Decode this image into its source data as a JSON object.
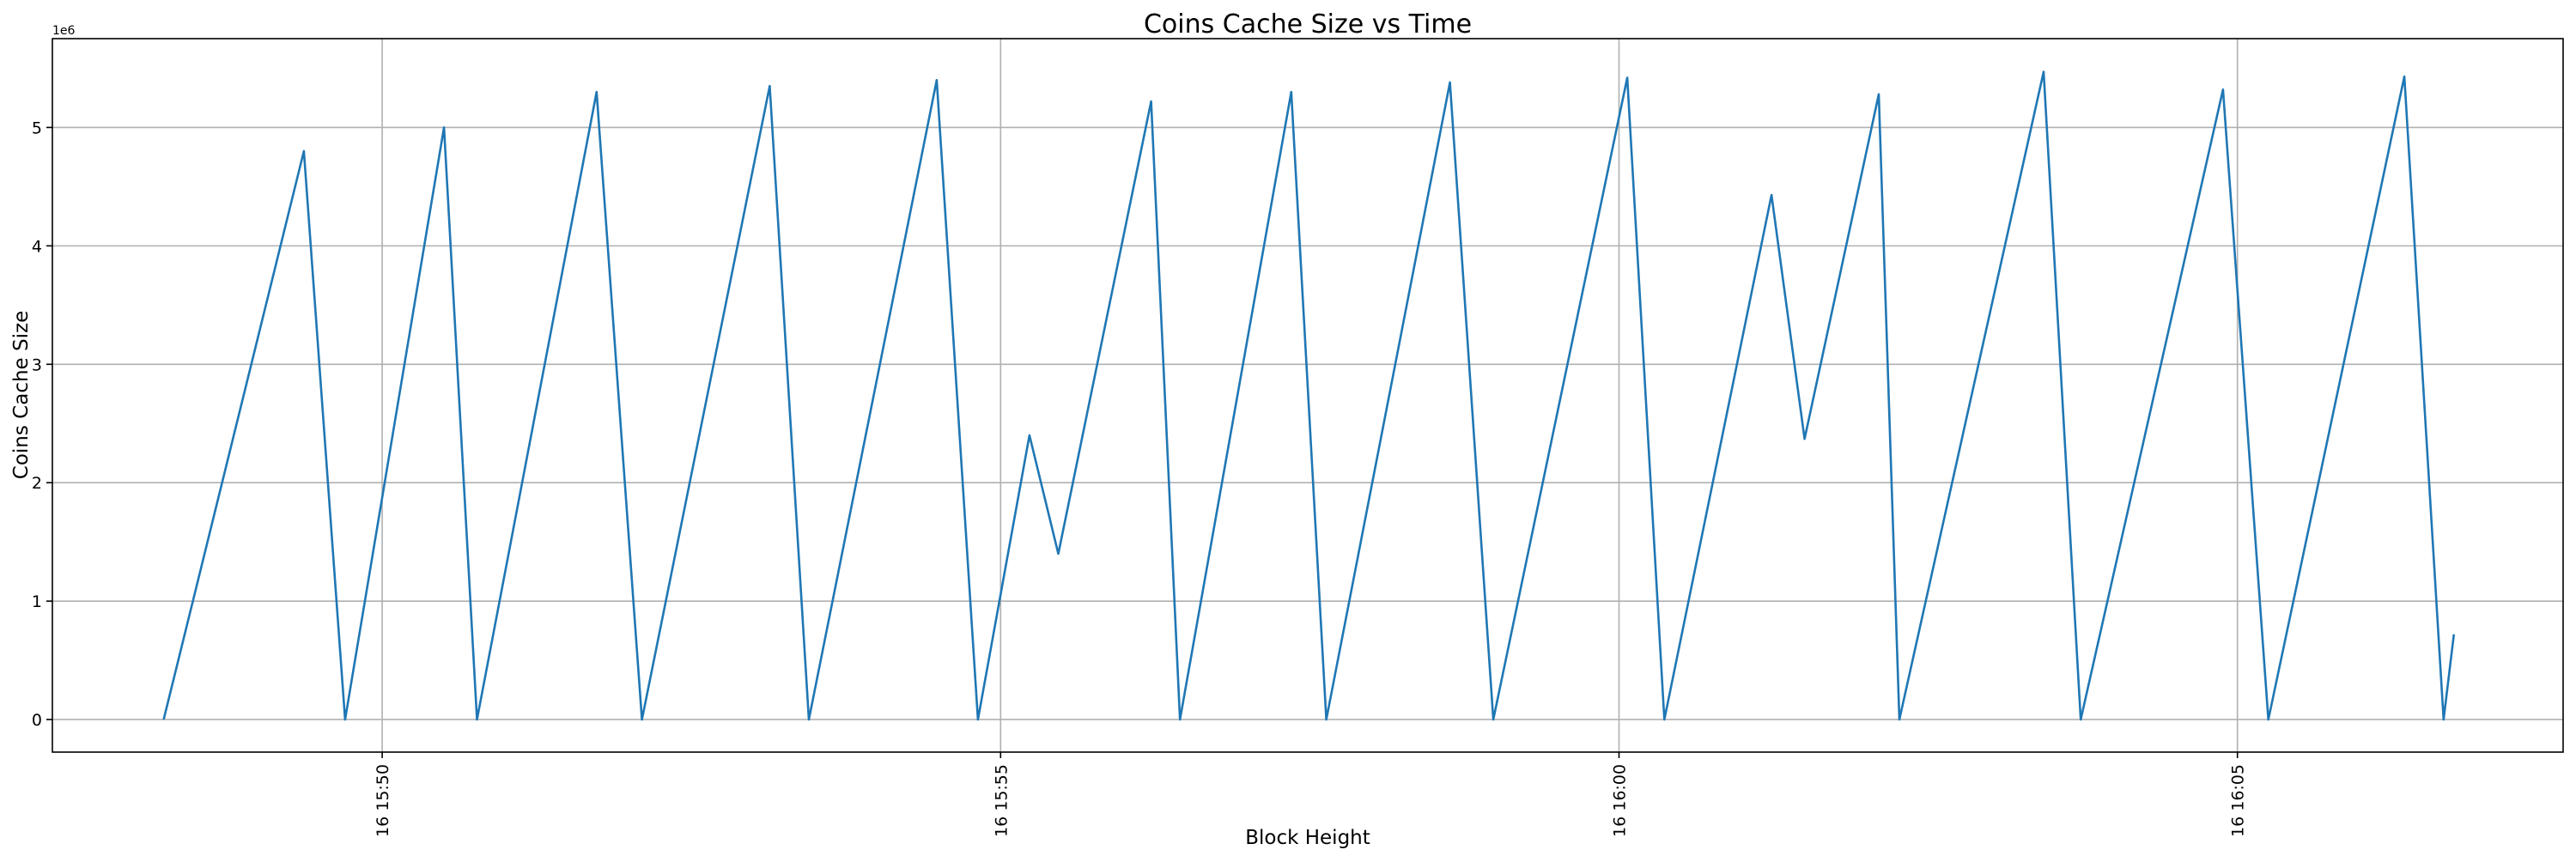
{
  "chart_data": {
    "type": "line",
    "title": "Coins Cache Size vs Time",
    "xlabel": "Block Height",
    "ylabel": "Coins Cache Size",
    "y_offset_label": "1e6",
    "x_tick_labels": [
      "16 15:50",
      "16 15:55",
      "16 16:00",
      "16 16:05"
    ],
    "x_tick_times": [
      "15:50:00",
      "15:55:00",
      "16:00:00",
      "16:05:00"
    ],
    "y_tick_labels": [
      "0",
      "1",
      "2",
      "3",
      "4",
      "5"
    ],
    "y_tick_values": [
      0,
      1000000,
      2000000,
      3000000,
      4000000,
      5000000
    ],
    "xlim": [
      "15:47:20",
      "16:07:38"
    ],
    "ylim": [
      -275000,
      5750000
    ],
    "grid": true,
    "line_color": "#1f77b4",
    "series": [
      {
        "x": [
          "15:48:14",
          "15:49:22",
          "15:49:42",
          "15:50:30",
          "15:50:46",
          "15:51:44",
          "15:52:06",
          "15:53:08",
          "15:53:27",
          "15:54:29",
          "15:54:49",
          "15:55:14",
          "15:55:28",
          "15:56:13",
          "15:56:27",
          "15:57:21",
          "15:57:38",
          "15:58:38",
          "15:58:59",
          "16:00:04",
          "16:00:22",
          "16:01:14",
          "16:01:30",
          "16:02:06",
          "16:02:16",
          "16:03:26",
          "16:03:44",
          "16:04:53",
          "16:05:15",
          "16:06:21",
          "16:06:40",
          "16:06:45"
        ],
        "y": [
          0,
          4800000,
          0,
          5000000,
          0,
          5300000,
          0,
          5350000,
          0,
          5400000,
          0,
          2400000,
          1400000,
          5220000,
          0,
          5300000,
          0,
          5380000,
          0,
          5420000,
          0,
          4430000,
          2370000,
          5280000,
          0,
          5470000,
          0,
          5320000,
          0,
          5430000,
          0,
          720000
        ]
      }
    ]
  }
}
